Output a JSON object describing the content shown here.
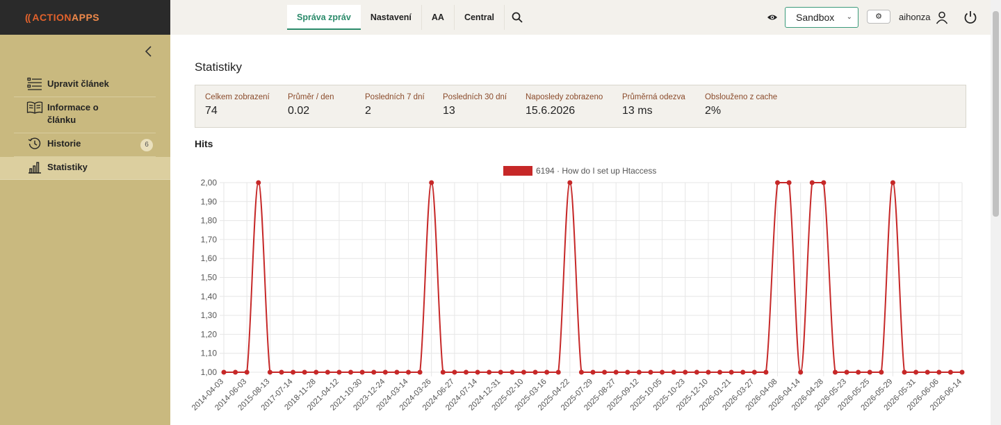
{
  "app": {
    "logo_mark": "((",
    "logo_part1": "ACTION",
    "logo_part2": "APPS"
  },
  "nav": {
    "tabs": [
      {
        "label": "Správa zpráv",
        "active": true
      },
      {
        "label": "Nastavení"
      },
      {
        "label": "AA"
      },
      {
        "label": "Central"
      }
    ]
  },
  "header": {
    "project": "Sandbox",
    "settings_glyph": "⚙",
    "username": "aihonza"
  },
  "sidebar": {
    "items": [
      {
        "label": "Upravit článek",
        "icon": "list-icon"
      },
      {
        "label": "Informace o článku",
        "icon": "book-icon"
      },
      {
        "label": "Historie",
        "icon": "history-icon",
        "badge": "6"
      },
      {
        "label": "Statistiky",
        "icon": "bar-chart-icon",
        "active": true
      }
    ]
  },
  "page": {
    "title": "Statistiky",
    "hits_title": "Hits"
  },
  "stats": [
    {
      "label": "Celkem zobrazení",
      "value": "74"
    },
    {
      "label": "Průměr / den",
      "value": "0.02"
    },
    {
      "label": "Posledních 7 dní",
      "value": "2"
    },
    {
      "label": "Posledních 30 dní",
      "value": "13"
    },
    {
      "label": "Naposledy zobrazeno",
      "value": "15.6.2026"
    },
    {
      "label": "Průměrná odezva",
      "value": "13 ms"
    },
    {
      "label": "Obslouženo z cache",
      "value": "2%"
    }
  ],
  "chart_data": {
    "type": "line",
    "series": [
      {
        "name": "6194 · How do I set up Htaccess",
        "color": "#c62828",
        "values": [
          1,
          1,
          1,
          2,
          1,
          1,
          1,
          1,
          1,
          1,
          1,
          1,
          1,
          1,
          1,
          1,
          1,
          1,
          2,
          1,
          1,
          1,
          1,
          1,
          1,
          1,
          1,
          1,
          1,
          1,
          2,
          1,
          1,
          1,
          1,
          1,
          1,
          1,
          1,
          1,
          1,
          1,
          1,
          1,
          1,
          1,
          1,
          1,
          2,
          2,
          1,
          2,
          2,
          1,
          1,
          1,
          1,
          1,
          2,
          1,
          1,
          1,
          1,
          1,
          1
        ]
      }
    ],
    "x_tick_labels": [
      "2014-04-03",
      "2014-06-03",
      "2015-08-13",
      "2017-07-14",
      "2018-11-28",
      "2021-04-12",
      "2021-10-30",
      "2023-12-24",
      "2024-03-14",
      "2024-03-26",
      "2024-06-27",
      "2024-07-14",
      "2024-12-31",
      "2025-02-10",
      "2025-03-16",
      "2025-04-22",
      "2025-07-29",
      "2025-08-27",
      "2025-09-12",
      "2025-10-05",
      "2025-10-23",
      "2025-12-10",
      "2026-01-21",
      "2026-03-27",
      "2026-04-08",
      "2026-04-14",
      "2026-04-28",
      "2026-05-23",
      "2026-05-25",
      "2026-05-29",
      "2026-05-31",
      "2026-06-06",
      "2026-06-14"
    ],
    "y_ticks": [
      "1,00",
      "1,10",
      "1,20",
      "1,30",
      "1,40",
      "1,50",
      "1,60",
      "1,70",
      "1,80",
      "1,90",
      "2,00"
    ],
    "ylim": [
      1,
      2
    ],
    "grid": true,
    "legend_position": "top"
  }
}
